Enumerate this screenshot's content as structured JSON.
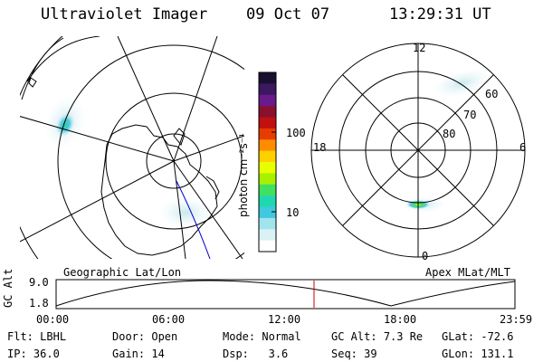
{
  "header": {
    "title": "Ultraviolet Imager",
    "date": "09 Oct 07",
    "time": "13:29:31 UT"
  },
  "colorbar": {
    "label": "photon cm⁻²s⁻¹",
    "ticks": [
      "100",
      "10"
    ],
    "colors": [
      "#1a0f2e",
      "#3b1860",
      "#6a1a8a",
      "#8a1030",
      "#c01010",
      "#e63c00",
      "#ff8c00",
      "#ffd000",
      "#e8ff00",
      "#a8f000",
      "#40e060",
      "#20d8b0",
      "#40c8e0",
      "#a0e4ee",
      "#d8f2f6",
      "#ffffff"
    ]
  },
  "left_map": {
    "caption": "Geographic Lat/Lon"
  },
  "right_map": {
    "caption": "Apex MLat/MLT",
    "mlt_labels": [
      "12",
      "18",
      "6",
      "0"
    ],
    "lat_labels": [
      "60",
      "70",
      "80"
    ]
  },
  "timeline": {
    "ylabel": "GC Alt",
    "ytick_top": "9.0",
    "ytick_bottom": "1.8",
    "xticks": [
      "00:00",
      "06:00",
      "12:00",
      "18:00",
      "23:59"
    ],
    "marker_color": "#cc0000"
  },
  "info": {
    "flt_label": "Flt:",
    "flt_value": "LBHL",
    "ip_label": "IP:",
    "ip_value": "36.0",
    "door_label": "Door:",
    "door_value": "Open",
    "gain_label": "Gain:",
    "gain_value": "14",
    "mode_label": "Mode:",
    "mode_value": "Normal",
    "dsp_label": "Dsp:",
    "dsp_value": "3.6",
    "gcalt_label": "GC Alt:",
    "gcalt_value": "7.3 Re",
    "seq_label": "Seq:",
    "seq_value": "39",
    "glat_label": "GLat:",
    "glat_value": "-72.6",
    "glon_label": "GLon:",
    "glon_value": "131.1"
  }
}
